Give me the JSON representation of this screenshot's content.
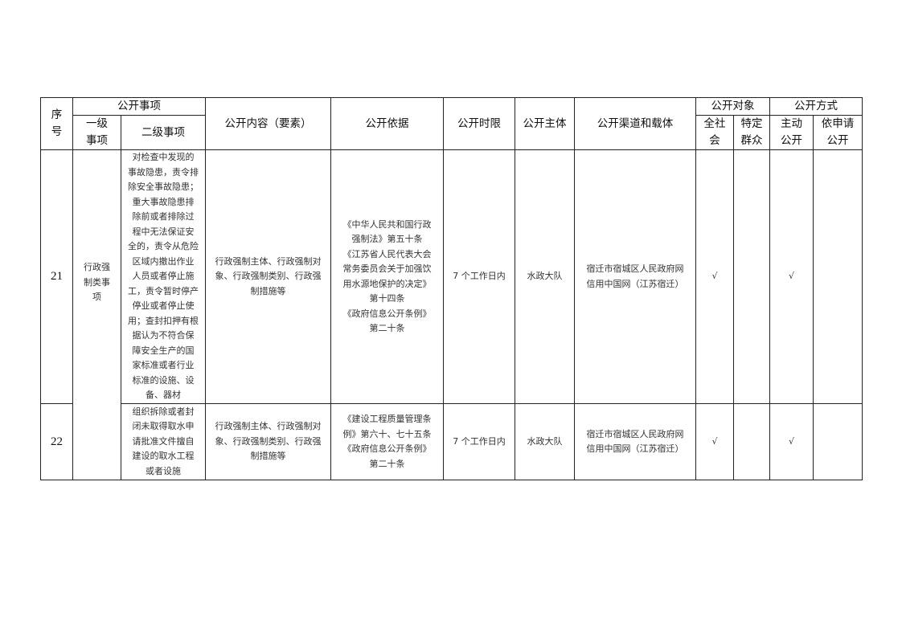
{
  "headers": {
    "seq": "序\n号",
    "items": "公开事项",
    "level1": "一级\n事项",
    "level2": "二级事项",
    "content": "公开内容（要素）",
    "basis": "公开依据",
    "time_limit": "公开时限",
    "subject": "公开主体",
    "channel": "公开渠道和载体",
    "target": "公开对象",
    "target_all": "全社\n会",
    "target_specific": "特定\n群众",
    "method": "公开方式",
    "method_active": "主动\n公开",
    "method_request": "依申请\n公开"
  },
  "level1_shared": "行政强\n制类事\n项",
  "rows": [
    {
      "seq": "21",
      "level2": "对检查中发现的\n事故隐患，责令排\n除安全事故隐患；\n重大事故隐患排\n除前或者排除过\n程中无法保证安\n全的，责令从危险\n区域内撤出作业\n人员或者停止施\n工，责令暂时停产\n停业或者停止使\n用；查封扣押有根\n据认为不符合保\n障安全生产的国\n家标准或者行业\n标准的设施、设\n备、器材",
      "content": "行政强制主体、行政强制对\n象、行政强制类别、行政强\n制措施等",
      "basis": "《中华人民共和国行政\n强制法》第五十条\n《江苏省人民代表大会\n常务委员会关于加强饮\n用水源地保护的决定》\n第十四条\n《政府信息公开条例》\n第二十条",
      "time_limit": "7 个工作日内",
      "subject": "水政大队",
      "channel": "宿迁市宿城区人民政府网\n信用中国网（江苏宿迁）",
      "target_all": "√",
      "target_specific": "",
      "method_active": "√",
      "method_request": ""
    },
    {
      "seq": "22",
      "level2": "组织拆除或者封\n闭未取得取水申\n请批准文件擅自\n建设的取水工程\n或者设施",
      "content": "行政强制主体、行政强制对\n象、行政强制类别、行政强\n制措施等",
      "basis": "《建设工程质量管理条\n例》第六十、七十五条\n《政府信息公开条例》\n第二十条",
      "time_limit": "7 个工作日内",
      "subject": "水政大队",
      "channel": "宿迁市宿城区人民政府网\n信用中国网（江苏宿迁）",
      "target_all": "√",
      "target_specific": "",
      "method_active": "√",
      "method_request": ""
    }
  ]
}
